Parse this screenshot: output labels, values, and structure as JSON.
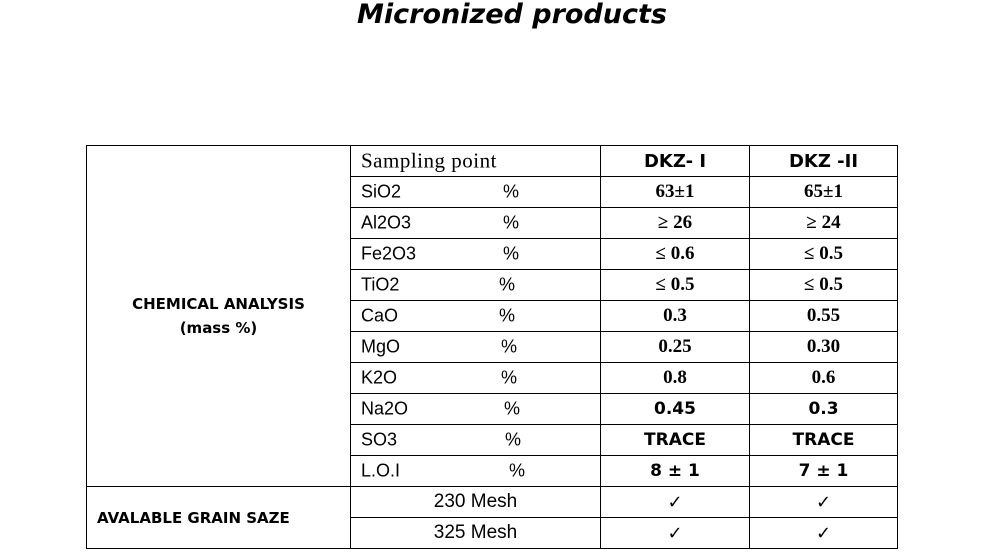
{
  "title": "Micronized products",
  "table": {
    "header": {
      "label": "Sampling  point",
      "col1": "DKZ- I",
      "col2": "DKZ -II"
    },
    "chemical_group": {
      "line1": "CHEMICAL ANALYSIS",
      "line2": "(mass %)"
    },
    "rows": [
      {
        "name": "SiO2",
        "unit": "%",
        "v1": "63±1",
        "v2": "65±1"
      },
      {
        "name": "Al2O3",
        "unit": "%",
        "v1": "≥ 26",
        "v2": "≥ 24"
      },
      {
        "name": "Fe2O3",
        "unit": "%",
        "v1": "≤ 0.6",
        "v2": "≤ 0.5"
      },
      {
        "name": "TiO2",
        "unit": "%",
        "v1": "≤ 0.5",
        "v2": "≤ 0.5"
      },
      {
        "name": "CaO",
        "unit": "%",
        "v1": "0.3",
        "v2": "0.55"
      },
      {
        "name": "MgO",
        "unit": "%",
        "v1": "0.25",
        "v2": "0.30"
      },
      {
        "name": "K2O",
        "unit": "%",
        "v1": "0.8",
        "v2": "0.6"
      },
      {
        "name": "Na2O",
        "unit": "%",
        "v1": "0.45",
        "v2": "0.3"
      },
      {
        "name": "SO3",
        "unit": "%",
        "v1": "TRACE",
        "v2": "TRACE"
      },
      {
        "name": "L.O.I",
        "unit": "%",
        "v1": "8 ± 1",
        "v2": "7 ± 1"
      }
    ],
    "grain_group": "AVALABLE  GRAIN SAZE",
    "grain_rows": [
      {
        "mesh": "230 Mesh",
        "v1": "✓",
        "v2": "✓"
      },
      {
        "mesh": "325 Mesh",
        "v1": "✓",
        "v2": "✓"
      }
    ]
  }
}
